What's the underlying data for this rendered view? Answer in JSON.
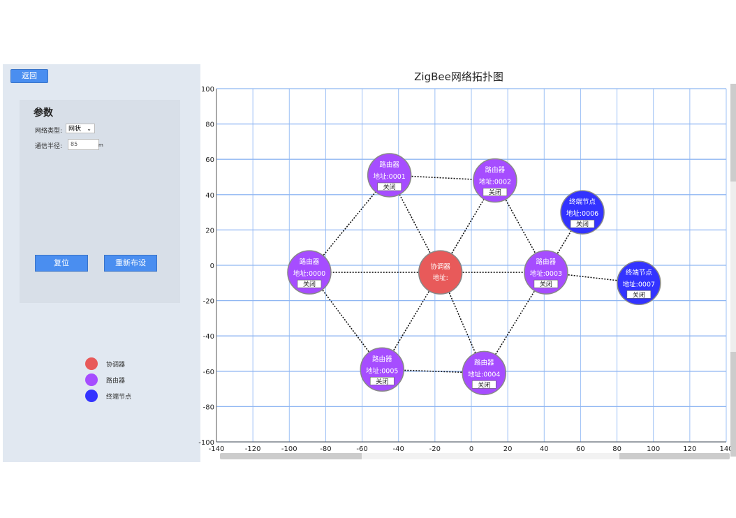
{
  "sidebar": {
    "back_label": "返回",
    "params_title": "参数",
    "network_type_label": "网络类型:",
    "network_type_value": "网状",
    "radius_label": "通信半径:",
    "radius_value": "85",
    "radius_unit": "m",
    "reset_label": "复位",
    "redeploy_label": "重新布设",
    "legend": [
      {
        "label": "协调器",
        "color": "#e85a5a"
      },
      {
        "label": "路由器",
        "color": "#a64dff"
      },
      {
        "label": "终端节点",
        "color": "#3333ff"
      }
    ]
  },
  "chart": {
    "title": "ZigBee网络拓扑图",
    "close_label": "关闭",
    "chart_data": {
      "type": "scatter",
      "title": "ZigBee网络拓扑图",
      "xlim": [
        -140,
        140
      ],
      "ylim": [
        -100,
        100
      ],
      "xticks": [
        -140,
        -120,
        -100,
        -80,
        -60,
        -40,
        -20,
        0,
        20,
        40,
        60,
        80,
        100,
        120,
        140
      ],
      "yticks": [
        100,
        80,
        60,
        40,
        20,
        0,
        -20,
        -40,
        -60,
        -80,
        -100
      ],
      "grid": true,
      "nodes": [
        {
          "id": "C",
          "type": "协调器",
          "addr": "地址:",
          "x": -17,
          "y": -4,
          "color": "#e85a5a"
        },
        {
          "id": "0000",
          "type": "路由器",
          "addr": "地址:0000",
          "x": -89,
          "y": -4,
          "color": "#a64dff"
        },
        {
          "id": "0001",
          "type": "路由器",
          "addr": "地址:0001",
          "x": -45,
          "y": 51,
          "color": "#a64dff"
        },
        {
          "id": "0002",
          "type": "路由器",
          "addr": "地址:0002",
          "x": 13,
          "y": 48,
          "color": "#a64dff"
        },
        {
          "id": "0003",
          "type": "路由器",
          "addr": "地址:0003",
          "x": 41,
          "y": -4,
          "color": "#a64dff"
        },
        {
          "id": "0004",
          "type": "路由器",
          "addr": "地址:0004",
          "x": 7,
          "y": -61,
          "color": "#a64dff"
        },
        {
          "id": "0005",
          "type": "路由器",
          "addr": "地址:0005",
          "x": -49,
          "y": -59,
          "color": "#a64dff"
        },
        {
          "id": "0006",
          "type": "终端节点",
          "addr": "地址:0006",
          "x": 61,
          "y": 30,
          "color": "#3333ff"
        },
        {
          "id": "0007",
          "type": "终端节点",
          "addr": "地址:0007",
          "x": 92,
          "y": -10,
          "color": "#3333ff"
        }
      ],
      "links": [
        [
          "C",
          "0000"
        ],
        [
          "C",
          "0001"
        ],
        [
          "C",
          "0002"
        ],
        [
          "C",
          "0003"
        ],
        [
          "C",
          "0004"
        ],
        [
          "C",
          "0005"
        ],
        [
          "0000",
          "0001"
        ],
        [
          "0001",
          "0002"
        ],
        [
          "0002",
          "0003"
        ],
        [
          "0003",
          "0004"
        ],
        [
          "0004",
          "0005"
        ],
        [
          "0005",
          "0000"
        ],
        [
          "0003",
          "0006"
        ],
        [
          "0003",
          "0007"
        ]
      ]
    }
  }
}
